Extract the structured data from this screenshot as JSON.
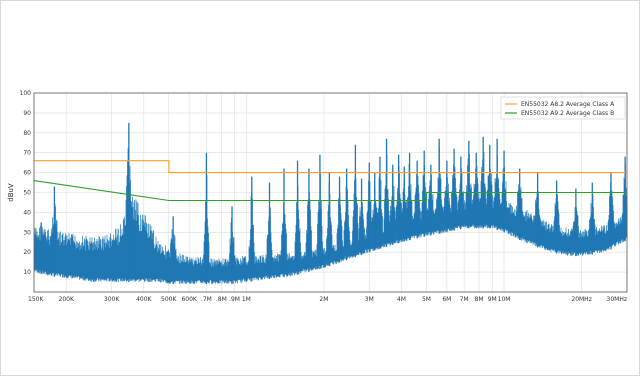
{
  "chart_data": {
    "type": "line",
    "title": "",
    "xlabel": "",
    "ylabel": "dBuV",
    "x_scale": "log",
    "xlim": [
      150000,
      30000000
    ],
    "ylim": [
      0,
      100
    ],
    "grid": true,
    "legend_position": "top-right",
    "y_ticks": [
      {
        "value": 10,
        "label": "10"
      },
      {
        "value": 20,
        "label": "20"
      },
      {
        "value": 30,
        "label": "30"
      },
      {
        "value": 40,
        "label": "40"
      },
      {
        "value": 50,
        "label": "50"
      },
      {
        "value": 60,
        "label": "60"
      },
      {
        "value": 70,
        "label": "70"
      },
      {
        "value": 80,
        "label": "80"
      },
      {
        "value": 90,
        "label": "90"
      },
      {
        "value": 100,
        "label": "100"
      }
    ],
    "x_ticks": [
      {
        "value": 150000,
        "label": "150K"
      },
      {
        "value": 200000,
        "label": "200K"
      },
      {
        "value": 300000,
        "label": "300K"
      },
      {
        "value": 400000,
        "label": "400K"
      },
      {
        "value": 500000,
        "label": "500K"
      },
      {
        "value": 600000,
        "label": "600K"
      },
      {
        "value": 700000,
        "label": ".7M"
      },
      {
        "value": 800000,
        "label": ".8M"
      },
      {
        "value": 900000,
        "label": ".9M"
      },
      {
        "value": 1000000,
        "label": "1M"
      },
      {
        "value": 2000000,
        "label": "2M"
      },
      {
        "value": 3000000,
        "label": "3M"
      },
      {
        "value": 4000000,
        "label": "4M"
      },
      {
        "value": 5000000,
        "label": "5M"
      },
      {
        "value": 6000000,
        "label": "6M"
      },
      {
        "value": 7000000,
        "label": "7M"
      },
      {
        "value": 8000000,
        "label": "8M"
      },
      {
        "value": 9000000,
        "label": "9M"
      },
      {
        "value": 10000000,
        "label": "10M"
      },
      {
        "value": 20000000,
        "label": "20MHz"
      },
      {
        "value": 30000000,
        "label": "30MHz"
      }
    ],
    "series": [
      {
        "name": "EN55032 A8.2 Average Class A",
        "color": "#ff9e2f",
        "x": [
          150000,
          500000,
          500000,
          30000000
        ],
        "y": [
          66,
          66,
          60,
          60
        ]
      },
      {
        "name": "EN55032 A9.2 Average Class B",
        "color": "#2ca02c",
        "x": [
          150000,
          500000,
          5000000,
          5000000,
          30000000
        ],
        "y": [
          56,
          46,
          46,
          50,
          50
        ]
      },
      {
        "name": "",
        "color": "#1f77b4",
        "envelope": {
          "x": [
            150000,
            170000,
            200000,
            250000,
            300000,
            330000,
            360000,
            400000,
            450000,
            500000,
            550000,
            600000,
            650000,
            700000,
            800000,
            900000,
            1000000,
            1500000,
            2000000,
            3000000,
            4000000,
            5000000,
            6000000,
            7000000,
            8000000,
            9000000,
            10000000,
            12000000,
            15000000,
            18000000,
            20000000,
            25000000,
            28000000,
            30000000
          ],
          "y_upper": [
            33,
            32,
            30,
            28,
            30,
            35,
            50,
            40,
            28,
            22,
            20,
            18,
            18,
            17,
            17,
            18,
            18,
            20,
            22,
            30,
            38,
            42,
            44,
            46,
            48,
            48,
            46,
            42,
            35,
            32,
            32,
            34,
            38,
            40
          ],
          "y_lower": [
            10,
            8,
            7,
            5,
            5,
            5,
            5,
            5,
            5,
            4,
            4,
            4,
            4,
            4,
            4,
            4,
            5,
            8,
            12,
            20,
            25,
            28,
            30,
            32,
            32,
            32,
            30,
            25,
            20,
            18,
            18,
            20,
            24,
            26
          ]
        },
        "peaks": [
          {
            "x": 160000,
            "y": 35
          },
          {
            "x": 180000,
            "y": 53
          },
          {
            "x": 350000,
            "y": 85
          },
          {
            "x": 520000,
            "y": 38
          },
          {
            "x": 700000,
            "y": 70
          },
          {
            "x": 880000,
            "y": 43
          },
          {
            "x": 1050000,
            "y": 58
          },
          {
            "x": 1230000,
            "y": 55
          },
          {
            "x": 1400000,
            "y": 62
          },
          {
            "x": 1580000,
            "y": 66
          },
          {
            "x": 1750000,
            "y": 62
          },
          {
            "x": 1930000,
            "y": 69
          },
          {
            "x": 2100000,
            "y": 60
          },
          {
            "x": 2300000,
            "y": 58
          },
          {
            "x": 2450000,
            "y": 62
          },
          {
            "x": 2650000,
            "y": 74
          },
          {
            "x": 2800000,
            "y": 57
          },
          {
            "x": 3000000,
            "y": 65
          },
          {
            "x": 3150000,
            "y": 60
          },
          {
            "x": 3300000,
            "y": 68
          },
          {
            "x": 3500000,
            "y": 77
          },
          {
            "x": 3700000,
            "y": 64
          },
          {
            "x": 3900000,
            "y": 69
          },
          {
            "x": 4100000,
            "y": 63
          },
          {
            "x": 4300000,
            "y": 70
          },
          {
            "x": 4600000,
            "y": 66
          },
          {
            "x": 4900000,
            "y": 71
          },
          {
            "x": 5200000,
            "y": 64
          },
          {
            "x": 5600000,
            "y": 77
          },
          {
            "x": 6000000,
            "y": 66
          },
          {
            "x": 6400000,
            "y": 72
          },
          {
            "x": 6800000,
            "y": 68
          },
          {
            "x": 7300000,
            "y": 76
          },
          {
            "x": 7800000,
            "y": 70
          },
          {
            "x": 8300000,
            "y": 78
          },
          {
            "x": 8800000,
            "y": 74
          },
          {
            "x": 9400000,
            "y": 77
          },
          {
            "x": 10000000,
            "y": 71
          },
          {
            "x": 11500000,
            "y": 62
          },
          {
            "x": 13500000,
            "y": 60
          },
          {
            "x": 16000000,
            "y": 56
          },
          {
            "x": 19000000,
            "y": 52
          },
          {
            "x": 22000000,
            "y": 55
          },
          {
            "x": 26000000,
            "y": 60
          },
          {
            "x": 29500000,
            "y": 68
          }
        ]
      }
    ]
  }
}
